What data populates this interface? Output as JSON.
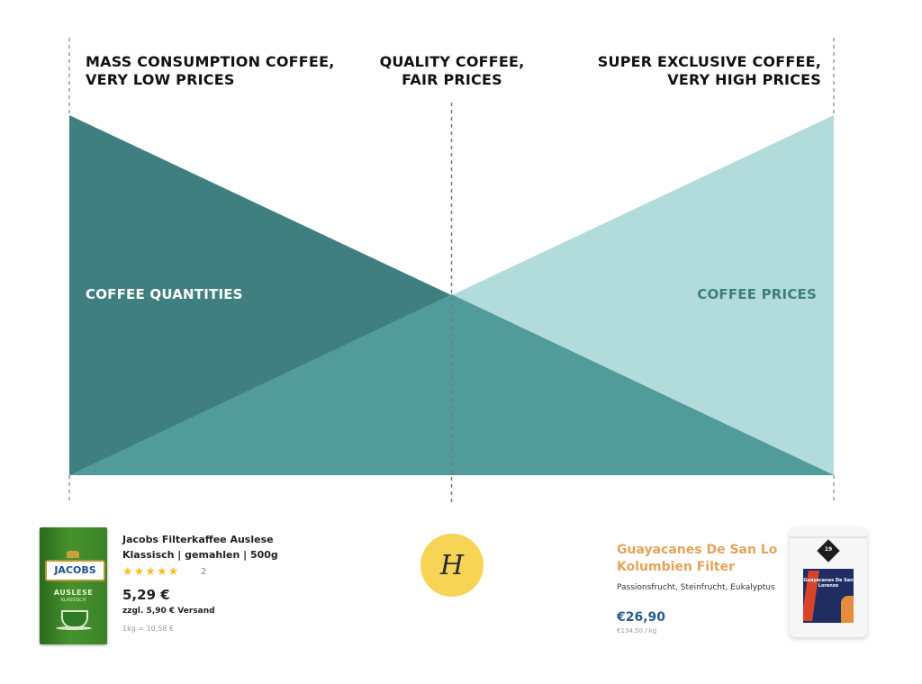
{
  "headings": {
    "left": [
      "MASS CONSUMPTION COFFEE,",
      "VERY LOW PRICES"
    ],
    "middle": [
      "QUALITY COFFEE,",
      "FAIR PRICES"
    ],
    "right": [
      "SUPER EXCLUSIVE COFFEE,",
      "VERY HIGH PRICES"
    ]
  },
  "diagram": {
    "quantities_label": "COFFEE QUANTITIES",
    "prices_label": "COFFEE PRICES",
    "colors": {
      "quantities": "#3f7f7f",
      "overlap": "#529b9b",
      "prices": "#b2dcdc",
      "divider": "#999999"
    }
  },
  "product_left": {
    "title": "Jacobs Filterkaffee Auslese Klassisch | gemahlen | 500g",
    "stars": "★★★★★",
    "rating_count": "2",
    "price": "5,29 €",
    "shipping": "zzgl. 5,90 € Versand",
    "unit_price": "1kg = 10,58 €",
    "pack": {
      "brand": "JACOBS",
      "line": "AUSLESE",
      "variant": "KLASSISCH"
    }
  },
  "logo": {
    "icon": "coffee-brand-logo-icon",
    "glyph": "H",
    "color": "#f7d455"
  },
  "product_right": {
    "title": "Guayacanes De San Lo Kolumbien Filter",
    "title_lines": [
      "Guayacanes De San Lo",
      "Kolumbien Filter"
    ],
    "notes": "Passionsfrucht, Steinfrucht, Eukalyptus",
    "price": "€26,90",
    "unit_price": "€134,50 / kg",
    "bag": {
      "badge": "19",
      "label": "Guayacanes De San Lorenzo"
    }
  }
}
